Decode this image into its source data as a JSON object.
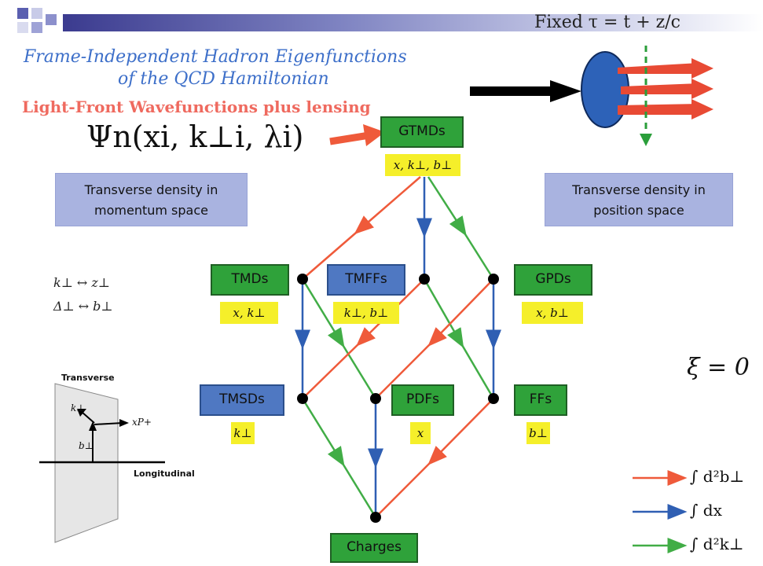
{
  "header": {
    "fixed_tau": "Fixed τ = t + z/c"
  },
  "title": {
    "line1": "Frame-Independent Hadron Eigenfunctions",
    "line2": "of the QCD Hamiltonian"
  },
  "lfw_label": "Light-Front Wavefunctions plus lensing",
  "psi_formula": "Ψn(xi, k⊥i, λi)",
  "density_momentum": {
    "line1": "Transverse density in",
    "line2": "momentum space"
  },
  "density_position": {
    "line1": "Transverse density in",
    "line2": "position space"
  },
  "nodes": {
    "gtmds": {
      "label": "GTMDs",
      "vars": "x, k⊥, b⊥"
    },
    "tmds": {
      "label": "TMDs",
      "vars": "x, k⊥"
    },
    "tmffs": {
      "label": "TMFFs",
      "vars": "k⊥, b⊥"
    },
    "gpds": {
      "label": "GPDs",
      "vars": "x, b⊥"
    },
    "tmsds": {
      "label": "TMSDs",
      "vars": "k⊥"
    },
    "pdfs": {
      "label": "PDFs",
      "vars": "x"
    },
    "ffs": {
      "label": "FFs",
      "vars": "b⊥"
    },
    "charges": {
      "label": "Charges"
    }
  },
  "relations": {
    "r1": "k⊥ ↔ z⊥",
    "r2": "Δ⊥ ↔ b⊥"
  },
  "xi": "ξ = 0",
  "transverse_diagram": {
    "transverse": "Transverse",
    "longitudinal": "Longitudinal",
    "k_perp": "k⊥",
    "b_perp": "b⊥",
    "xp": "xP+"
  },
  "legend": {
    "red": "∫ d²b⊥",
    "blue": "∫ dx",
    "green": "∫ d²k⊥"
  },
  "colors": {
    "red": "#ef5a3a",
    "blue": "#2f5fb3",
    "green": "#41ad46",
    "yellow": "#f5ef2a"
  }
}
